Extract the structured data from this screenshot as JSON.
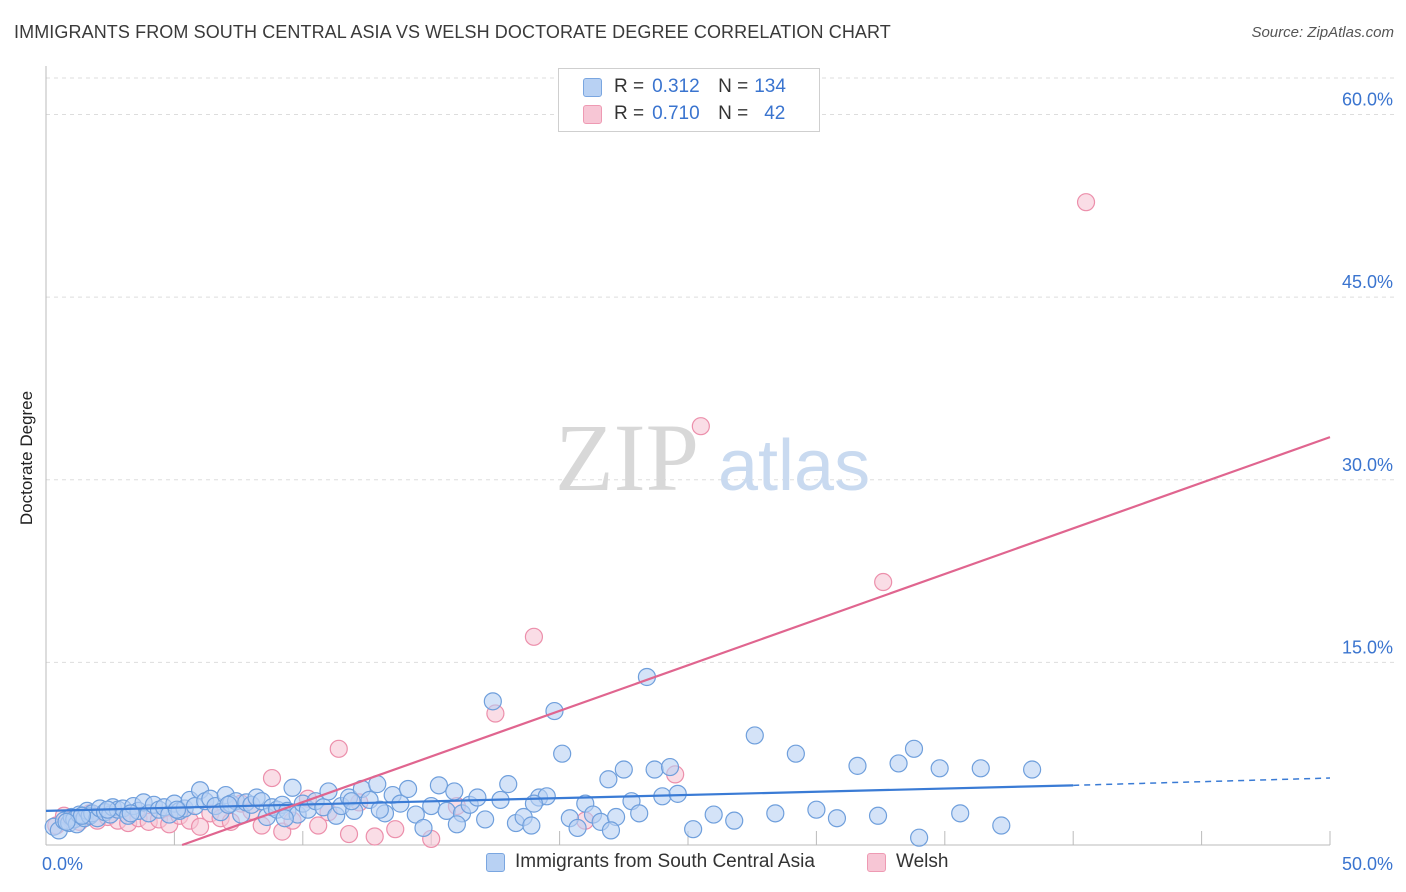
{
  "title": "IMMIGRANTS FROM SOUTH CENTRAL ASIA VS WELSH DOCTORATE DEGREE CORRELATION CHART",
  "source": "Source: ZipAtlas.com",
  "watermark": {
    "zip": "ZIP",
    "atlas": "atlas"
  },
  "legend": {
    "blue": {
      "r_label": "R =",
      "r_value": "0.312",
      "n_label": "N =",
      "n_value": "134"
    },
    "pink": {
      "r_label": "R =",
      "r_value": "0.710",
      "n_label": "N =",
      "n_value": "42"
    }
  },
  "colors": {
    "blue_fill": "#b8d1f3",
    "blue_stroke": "#6f9fdc",
    "blue_line": "#3a7bd5",
    "pink_fill": "#f7c6d5",
    "pink_stroke": "#ec8fab",
    "pink_line": "#e0658f",
    "tick_text": "#3a74cf",
    "grid": "#dddddd"
  },
  "chart_data": {
    "type": "scatter",
    "title": "IMMIGRANTS FROM SOUTH CENTRAL ASIA VS WELSH DOCTORATE DEGREE CORRELATION CHART",
    "xlabel": "",
    "ylabel": "Doctorate Degree",
    "xlim": [
      0,
      50
    ],
    "ylim": [
      0,
      63
    ],
    "x_tick_labels": [
      "0.0%",
      "50.0%"
    ],
    "y_ticks": [
      15,
      30,
      45,
      60
    ],
    "y_tick_labels": [
      "15.0%",
      "30.0%",
      "45.0%",
      "60.0%"
    ],
    "grid": true,
    "series": [
      {
        "name": "Immigrants from South Central Asia",
        "color": "blue",
        "trend": {
          "x": [
            0,
            40
          ],
          "y": [
            2.8,
            4.9
          ],
          "dashed_extension": {
            "x": [
              40,
              50
            ],
            "y": [
              4.9,
              5.5
            ]
          }
        },
        "points": [
          [
            0.3,
            1.5
          ],
          [
            0.5,
            1.2
          ],
          [
            0.7,
            2.0
          ],
          [
            0.9,
            1.8
          ],
          [
            1.0,
            2.3
          ],
          [
            1.1,
            2.1
          ],
          [
            1.2,
            1.7
          ],
          [
            1.3,
            2.5
          ],
          [
            1.5,
            2.2
          ],
          [
            1.6,
            2.8
          ],
          [
            1.7,
            2.4
          ],
          [
            1.8,
            2.6
          ],
          [
            2.0,
            2.2
          ],
          [
            2.1,
            3.0
          ],
          [
            2.3,
            2.7
          ],
          [
            2.5,
            2.5
          ],
          [
            2.6,
            3.1
          ],
          [
            2.8,
            2.9
          ],
          [
            3.0,
            3.0
          ],
          [
            3.2,
            2.4
          ],
          [
            3.4,
            3.2
          ],
          [
            3.6,
            2.8
          ],
          [
            3.8,
            3.5
          ],
          [
            4.0,
            2.6
          ],
          [
            4.2,
            3.3
          ],
          [
            4.4,
            2.9
          ],
          [
            4.6,
            3.1
          ],
          [
            4.8,
            2.5
          ],
          [
            5.0,
            3.4
          ],
          [
            5.2,
            2.8
          ],
          [
            5.4,
            3.0
          ],
          [
            5.6,
            3.7
          ],
          [
            5.8,
            3.2
          ],
          [
            6.0,
            4.5
          ],
          [
            6.2,
            3.6
          ],
          [
            6.4,
            3.8
          ],
          [
            6.6,
            3.2
          ],
          [
            6.8,
            2.7
          ],
          [
            7.0,
            4.1
          ],
          [
            7.2,
            3.4
          ],
          [
            7.4,
            3.6
          ],
          [
            7.6,
            2.5
          ],
          [
            7.8,
            3.5
          ],
          [
            8.0,
            3.3
          ],
          [
            8.2,
            3.9
          ],
          [
            8.4,
            3.6
          ],
          [
            8.6,
            2.3
          ],
          [
            8.8,
            3.1
          ],
          [
            9.0,
            2.9
          ],
          [
            9.2,
            3.3
          ],
          [
            9.4,
            2.8
          ],
          [
            9.6,
            4.7
          ],
          [
            9.8,
            2.5
          ],
          [
            10.0,
            3.4
          ],
          [
            10.2,
            2.9
          ],
          [
            10.5,
            3.6
          ],
          [
            10.8,
            3.1
          ],
          [
            11.0,
            4.4
          ],
          [
            11.3,
            2.4
          ],
          [
            11.5,
            3.2
          ],
          [
            11.8,
            3.9
          ],
          [
            12.0,
            2.8
          ],
          [
            12.3,
            4.6
          ],
          [
            12.6,
            3.7
          ],
          [
            12.9,
            5.0
          ],
          [
            13.2,
            2.6
          ],
          [
            13.5,
            4.1
          ],
          [
            13.8,
            3.4
          ],
          [
            14.1,
            4.6
          ],
          [
            14.4,
            2.5
          ],
          [
            14.7,
            1.4
          ],
          [
            15.0,
            3.2
          ],
          [
            15.3,
            4.9
          ],
          [
            15.6,
            2.8
          ],
          [
            15.9,
            4.4
          ],
          [
            16.2,
            2.6
          ],
          [
            16.5,
            3.3
          ],
          [
            16.8,
            3.9
          ],
          [
            17.1,
            2.1
          ],
          [
            17.4,
            11.8
          ],
          [
            17.7,
            3.7
          ],
          [
            18.0,
            5.0
          ],
          [
            18.3,
            1.8
          ],
          [
            18.6,
            2.3
          ],
          [
            18.9,
            1.6
          ],
          [
            19.2,
            3.9
          ],
          [
            19.5,
            4.0
          ],
          [
            19.8,
            11.0
          ],
          [
            20.1,
            7.5
          ],
          [
            20.4,
            2.2
          ],
          [
            20.7,
            1.4
          ],
          [
            21.0,
            3.4
          ],
          [
            21.3,
            2.5
          ],
          [
            21.6,
            1.9
          ],
          [
            21.9,
            5.4
          ],
          [
            22.2,
            2.3
          ],
          [
            22.5,
            6.2
          ],
          [
            22.8,
            3.6
          ],
          [
            23.1,
            2.6
          ],
          [
            23.4,
            13.8
          ],
          [
            23.7,
            6.2
          ],
          [
            24.0,
            4.0
          ],
          [
            24.3,
            6.4
          ],
          [
            24.6,
            4.2
          ],
          [
            25.2,
            1.3
          ],
          [
            26.0,
            2.5
          ],
          [
            26.8,
            2.0
          ],
          [
            27.6,
            9.0
          ],
          [
            28.4,
            2.6
          ],
          [
            29.2,
            7.5
          ],
          [
            30.0,
            2.9
          ],
          [
            30.8,
            2.2
          ],
          [
            31.6,
            6.5
          ],
          [
            32.4,
            2.4
          ],
          [
            33.2,
            6.7
          ],
          [
            34.0,
            0.6
          ],
          [
            34.8,
            6.3
          ],
          [
            35.6,
            2.6
          ],
          [
            36.4,
            6.3
          ],
          [
            37.2,
            1.6
          ],
          [
            38.4,
            6.2
          ],
          [
            33.8,
            7.9
          ],
          [
            22.0,
            1.2
          ],
          [
            19.0,
            3.4
          ],
          [
            16.0,
            1.7
          ],
          [
            13.0,
            2.9
          ],
          [
            11.9,
            3.6
          ],
          [
            9.3,
            2.2
          ],
          [
            7.1,
            3.3
          ],
          [
            5.1,
            2.9
          ],
          [
            3.3,
            2.6
          ],
          [
            2.4,
            2.9
          ],
          [
            1.4,
            2.4
          ],
          [
            0.8,
            1.9
          ]
        ]
      },
      {
        "name": "Welsh",
        "color": "pink",
        "trend": {
          "x": [
            5.3,
            50
          ],
          "y": [
            0,
            33.5
          ]
        },
        "points": [
          [
            0.4,
            1.6
          ],
          [
            0.7,
            2.4
          ],
          [
            1.0,
            2.1
          ],
          [
            1.3,
            1.9
          ],
          [
            1.7,
            2.6
          ],
          [
            2.0,
            2.0
          ],
          [
            2.4,
            2.3
          ],
          [
            2.8,
            2.0
          ],
          [
            3.2,
            1.8
          ],
          [
            3.6,
            2.2
          ],
          [
            4.0,
            1.9
          ],
          [
            4.4,
            2.1
          ],
          [
            4.8,
            1.7
          ],
          [
            5.2,
            2.4
          ],
          [
            5.6,
            2.0
          ],
          [
            6.0,
            1.5
          ],
          [
            6.4,
            2.6
          ],
          [
            6.8,
            2.2
          ],
          [
            7.2,
            1.9
          ],
          [
            7.6,
            3.4
          ],
          [
            8.0,
            2.8
          ],
          [
            8.4,
            1.6
          ],
          [
            8.8,
            5.5
          ],
          [
            9.2,
            1.1
          ],
          [
            9.6,
            2.0
          ],
          [
            10.2,
            3.8
          ],
          [
            10.6,
            1.6
          ],
          [
            11.0,
            2.7
          ],
          [
            11.4,
            7.9
          ],
          [
            11.8,
            0.9
          ],
          [
            12.2,
            3.5
          ],
          [
            12.8,
            0.7
          ],
          [
            13.6,
            1.3
          ],
          [
            15.0,
            0.5
          ],
          [
            16.0,
            3.2
          ],
          [
            17.5,
            10.8
          ],
          [
            19.0,
            17.1
          ],
          [
            21.0,
            2.0
          ],
          [
            25.5,
            34.4
          ],
          [
            32.6,
            21.6
          ],
          [
            40.5,
            52.8
          ],
          [
            24.5,
            5.8
          ]
        ]
      }
    ]
  },
  "bottom_legend": {
    "blue_label": "Immigrants from South Central Asia",
    "pink_label": "Welsh"
  }
}
